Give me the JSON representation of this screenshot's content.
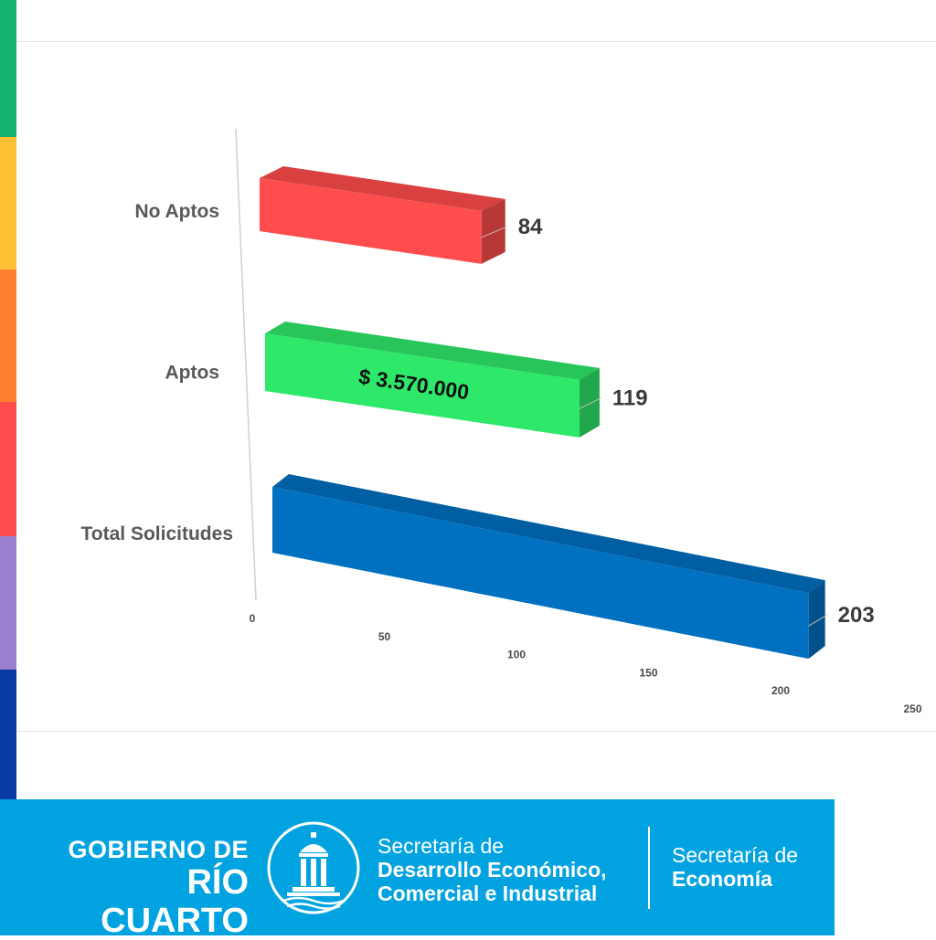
{
  "colors": {
    "stripes": [
      "#14b26f",
      "#ffc133",
      "#ff7f32",
      "#ff4d4d",
      "#9b7fd1",
      "#0a3aa3"
    ],
    "bars": [
      "#ff4d4d",
      "#2ee86a",
      "#0070c0"
    ],
    "footer": "#00a3e0"
  },
  "chart_data": {
    "type": "bar",
    "orientation": "horizontal",
    "style": "3d",
    "categories": [
      "No Aptos",
      "Aptos",
      "Total Solicitudes"
    ],
    "values": [
      84,
      119,
      203
    ],
    "value_labels": [
      "84",
      "119",
      "203"
    ],
    "xlim": [
      0,
      250
    ],
    "xticks": [
      0,
      50,
      100,
      150,
      200,
      250
    ],
    "annotation": {
      "category": "Aptos",
      "text": "$ 3.570.000"
    },
    "grid": false,
    "legend": "none"
  },
  "footer": {
    "gobierno_line1": "GOBIERNO DE",
    "gobierno_line2": "RÍO CUARTO",
    "logo_icon": "municipal-building-icon",
    "secretaria1_line1": "Secretaría de",
    "secretaria1_line2": "Desarrollo Económico,",
    "secretaria1_line3": "Comercial e Industrial",
    "secretaria2_line1": "Secretaría de",
    "secretaria2_line2": "Economía"
  }
}
